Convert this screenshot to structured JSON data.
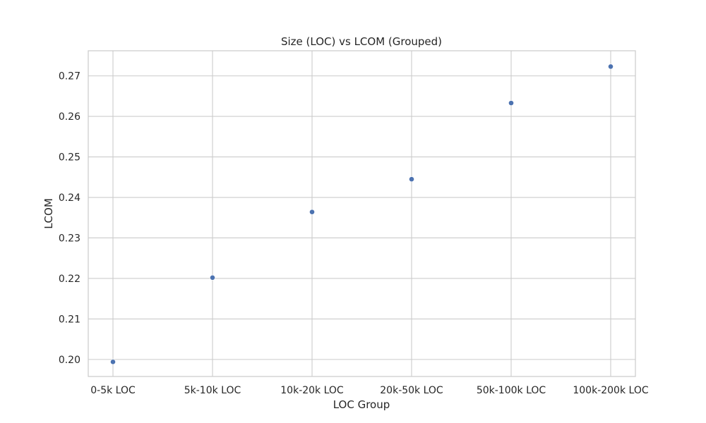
{
  "chart_data": {
    "type": "scatter",
    "title": "Size (LOC) vs LCOM (Grouped)",
    "xlabel": "LOC Group",
    "ylabel": "LCOM",
    "categories": [
      "0-5k LOC",
      "5k-10k LOC",
      "10k-20k LOC",
      "20k-50k LOC",
      "50k-100k LOC",
      "100k-200k LOC"
    ],
    "series": [
      {
        "values": [
          0.1994,
          0.2202,
          0.2364,
          0.2445,
          0.2633,
          0.2723
        ]
      }
    ],
    "ylim": [
      0.1958,
      0.2762
    ],
    "yticks": [
      "0.20",
      "0.21",
      "0.22",
      "0.23",
      "0.24",
      "0.25",
      "0.26",
      "0.27"
    ],
    "grid": true,
    "legend": "none",
    "colors": {
      "marker": "#4c72b0",
      "grid": "#cccccc",
      "frame": "#cccccc",
      "text": "#262626"
    }
  }
}
